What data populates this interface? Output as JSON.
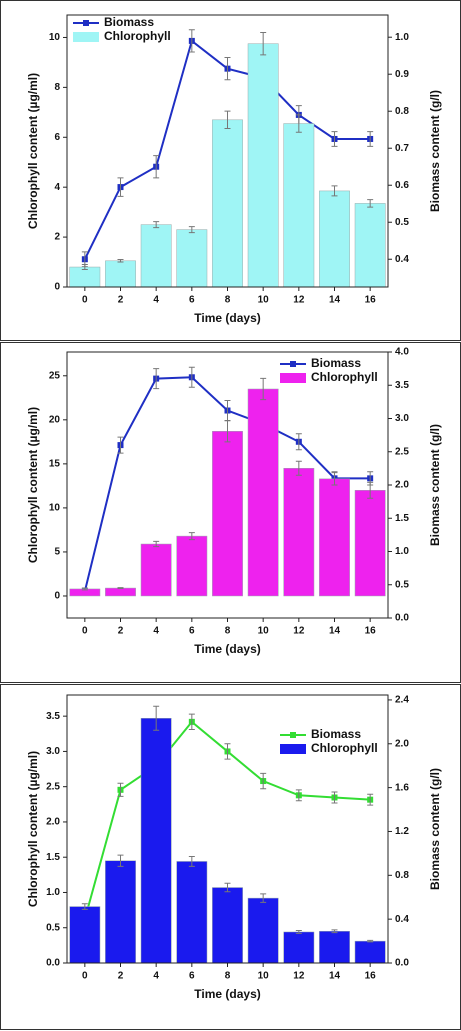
{
  "chart_data": [
    {
      "type": "combo",
      "x_label": "Time (days)",
      "y_label": "Chlorophyll content (µg/ml)",
      "y2_label": "Biomass content (g/l)",
      "x": [
        0,
        2,
        4,
        6,
        8,
        10,
        12,
        14,
        16
      ],
      "xlim": [
        -1,
        17
      ],
      "xticks": [
        0,
        2,
        4,
        6,
        8,
        10,
        12,
        14,
        16
      ],
      "ylim": [
        0,
        10.9
      ],
      "yticks": [
        0,
        2,
        4,
        6,
        8,
        10
      ],
      "y2lim": [
        0.325,
        1.06
      ],
      "y2ticks": [
        0.4,
        0.5,
        0.6,
        0.7,
        0.8,
        0.9,
        {
          "value": 1.0,
          "label": "1.0"
        }
      ],
      "legend": "upper left",
      "series": [
        {
          "name": "Biomass",
          "type": "line",
          "axis": "y2",
          "color": "#1f2fc4",
          "values": [
            0.4,
            0.595,
            0.65,
            0.99,
            0.915,
            0.89,
            0.79,
            0.725,
            0.725
          ],
          "errors": [
            0.02,
            0.025,
            0.03,
            0.03,
            0.03,
            0.035,
            0.025,
            0.02,
            0.02
          ]
        },
        {
          "name": "Chlorophyll",
          "type": "bar",
          "color": "#9ff5f5",
          "values": [
            0.8,
            1.05,
            2.5,
            2.3,
            6.7,
            9.75,
            6.55,
            3.85,
            3.35
          ],
          "errors": [
            0.1,
            0.05,
            0.12,
            0.12,
            0.35,
            0.45,
            0.35,
            0.2,
            0.15
          ]
        }
      ]
    },
    {
      "type": "combo",
      "x_label": "Time (days)",
      "y_label": "Chlorophyll content (µg/ml)",
      "y2_label": "Biomass content (g/l)",
      "x": [
        0,
        2,
        4,
        6,
        8,
        10,
        12,
        14,
        16
      ],
      "xlim": [
        -1,
        17
      ],
      "xticks": [
        0,
        2,
        4,
        6,
        8,
        10,
        12,
        14,
        16
      ],
      "ylim": [
        -2.5,
        27.7
      ],
      "yticks": [
        0,
        5,
        10,
        15,
        20,
        25
      ],
      "y2lim": [
        0,
        4.0
      ],
      "y2ticks": [
        {
          "value": 0,
          "label": "0.0"
        },
        0.5,
        {
          "value": 1,
          "label": "1.0"
        },
        1.5,
        {
          "value": 2,
          "label": "2.0"
        },
        2.5,
        {
          "value": 3,
          "label": "3.0"
        },
        3.5,
        {
          "value": 4,
          "label": "4.0"
        }
      ],
      "legend": "upper right",
      "series": [
        {
          "name": "Biomass",
          "type": "line",
          "axis": "y2",
          "color": "#1f2fc4",
          "values": [
            0.4,
            2.6,
            3.6,
            3.62,
            3.12,
            2.92,
            2.65,
            2.1,
            2.1
          ],
          "errors": [
            0.02,
            0.12,
            0.15,
            0.15,
            0.15,
            0.15,
            0.12,
            0.1,
            0.1
          ]
        },
        {
          "name": "Chlorophyll",
          "type": "bar",
          "color": "#ee22ee",
          "values": [
            0.8,
            0.9,
            5.9,
            6.8,
            18.7,
            23.5,
            14.5,
            13.3,
            12.0
          ],
          "errors": [
            0.1,
            0.05,
            0.3,
            0.4,
            1.2,
            1.2,
            0.8,
            0.7,
            0.9
          ]
        }
      ]
    },
    {
      "type": "combo",
      "x_label": "Time (days)",
      "y_label": "Chlorophyll content (µg/ml)",
      "y2_label": "Biomass content (g/l)",
      "x": [
        0,
        2,
        4,
        6,
        8,
        10,
        12,
        14,
        16
      ],
      "xlim": [
        -1,
        17
      ],
      "xticks": [
        0,
        2,
        4,
        6,
        8,
        10,
        12,
        14,
        16
      ],
      "ylim": [
        0,
        3.8
      ],
      "yticks": [
        {
          "value": 0,
          "label": "0.0"
        },
        0.5,
        {
          "value": 1,
          "label": "1.0"
        },
        1.5,
        {
          "value": 2,
          "label": "2.0"
        },
        2.5,
        {
          "value": 3,
          "label": "3.0"
        },
        3.5
      ],
      "y2lim": [
        0,
        2.445
      ],
      "y2ticks": [
        {
          "value": 0,
          "label": "0.0"
        },
        0.4,
        0.8,
        1.2,
        1.6,
        {
          "value": 2,
          "label": "2.0"
        },
        2.4
      ],
      "legend": "upper right",
      "series": [
        {
          "name": "Biomass",
          "type": "line",
          "axis": "y2",
          "color": "#33dd33",
          "values": [
            0.4,
            1.58,
            1.8,
            2.2,
            1.93,
            1.66,
            1.53,
            1.51,
            1.49
          ],
          "errors": [
            0.03,
            0.06,
            0.07,
            0.07,
            0.07,
            0.07,
            0.05,
            0.05,
            0.05
          ]
        },
        {
          "name": "Chlorophyll",
          "type": "bar",
          "color": "#1a1aee",
          "values": [
            0.8,
            1.45,
            3.47,
            1.44,
            1.07,
            0.92,
            0.44,
            0.45,
            0.31
          ],
          "errors": [
            0.04,
            0.08,
            0.17,
            0.07,
            0.06,
            0.06,
            0.02,
            0.02,
            0.01
          ]
        }
      ]
    }
  ]
}
